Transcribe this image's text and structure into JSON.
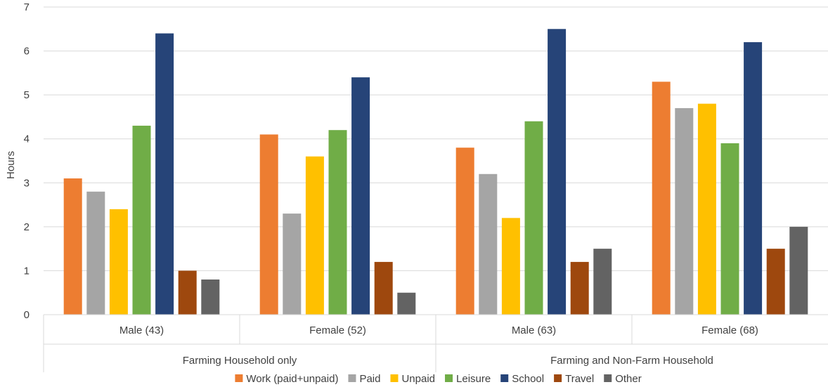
{
  "chart_data": {
    "type": "bar",
    "title": "",
    "xlabel": "",
    "ylabel": "Hours",
    "ylim": [
      0,
      7
    ],
    "yticks": [
      0,
      1,
      2,
      3,
      4,
      5,
      6,
      7
    ],
    "grid": true,
    "legend_position": "bottom",
    "groups": [
      {
        "label": "Farming Household only",
        "categories": [
          "Male (43)",
          "Female (52)"
        ]
      },
      {
        "label": "Farming and Non-Farm Household",
        "categories": [
          "Male (63)",
          "Female (68)"
        ]
      }
    ],
    "categories": [
      "Male (43)",
      "Female (52)",
      "Male (63)",
      "Female (68)"
    ],
    "series": [
      {
        "name": "Work (paid+unpaid)",
        "color": "#ED7D31",
        "values": [
          3.1,
          4.1,
          3.8,
          5.3
        ]
      },
      {
        "name": "Paid",
        "color": "#A5A5A5",
        "values": [
          2.8,
          2.3,
          3.2,
          4.7
        ]
      },
      {
        "name": "Unpaid",
        "color": "#FFC000",
        "values": [
          2.4,
          3.6,
          2.2,
          4.8
        ]
      },
      {
        "name": "Leisure",
        "color": "#70AD47",
        "values": [
          4.3,
          4.2,
          4.4,
          3.9
        ]
      },
      {
        "name": "School",
        "color": "#264478",
        "values": [
          6.4,
          5.4,
          6.5,
          6.2
        ]
      },
      {
        "name": "Travel",
        "color": "#9E480E",
        "values": [
          1.0,
          1.2,
          1.2,
          1.5
        ]
      },
      {
        "name": "Other",
        "color": "#636363",
        "values": [
          0.8,
          0.5,
          1.5,
          2.0
        ]
      }
    ]
  }
}
